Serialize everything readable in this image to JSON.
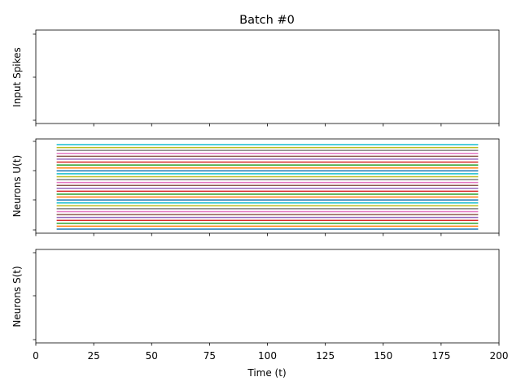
{
  "chart_data": [
    {
      "type": "line",
      "title": "Batch #0",
      "ylabel": "Input Spikes",
      "xlim": [
        0,
        200
      ],
      "y_tick_count": 3,
      "x_tick_labels_visible": false,
      "series": []
    },
    {
      "type": "line",
      "ylabel": "Neurons U(t)",
      "xlim": [
        0,
        200
      ],
      "y_tick_count": 4,
      "x_tick_labels_visible": false,
      "line_count": 30,
      "x_range": [
        9,
        191
      ],
      "colors": [
        "#1f77b4",
        "#ff7f0e",
        "#2ca02c",
        "#d62728",
        "#9467bd",
        "#8c564b",
        "#e377c2",
        "#7f7f7f",
        "#bcbd22",
        "#17becf"
      ]
    },
    {
      "type": "line",
      "ylabel": "Neurons S(t)",
      "xlabel": "Time (t)",
      "xlim": [
        0,
        200
      ],
      "y_tick_count": 3,
      "x_ticks": [
        0,
        25,
        50,
        75,
        100,
        125,
        150,
        175,
        200
      ],
      "x_tick_labels": [
        "0",
        "25",
        "50",
        "75",
        "100",
        "125",
        "150",
        "175",
        "200"
      ],
      "series": []
    }
  ]
}
